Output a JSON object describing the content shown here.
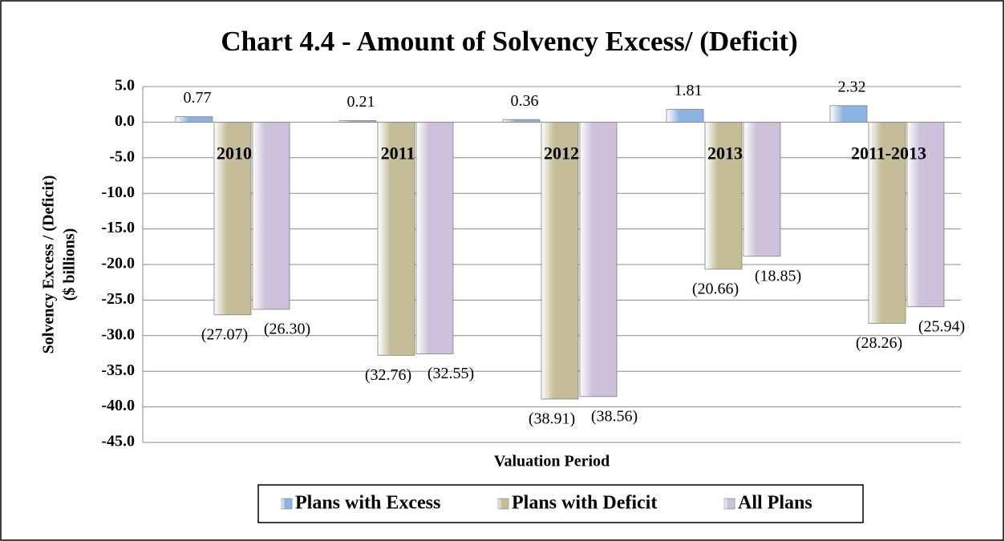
{
  "chart_data": {
    "type": "bar",
    "title": "Chart 4.4 - Amount of Solvency Excess/ (Deficit)",
    "y_label": [
      "Solvency Excess / (Deficit)",
      "($ billions)"
    ],
    "x_label": "Valuation Period",
    "categories": [
      "2010",
      "2011",
      "2012",
      "2013",
      "2011-2013"
    ],
    "series": [
      {
        "name": "Plans with Excess",
        "color": "#8db3e2",
        "values": [
          0.77,
          0.21,
          0.36,
          1.81,
          2.32
        ]
      },
      {
        "name": "Plans with Deficit",
        "color": "#c4bd97",
        "values": [
          -27.07,
          -32.76,
          -38.91,
          -20.66,
          -28.26
        ],
        "value_labels": [
          "(27.07)",
          "(32.76)",
          "(38.91)",
          "(20.66)",
          "(28.26)"
        ]
      },
      {
        "name": "All Plans",
        "color": "#ccc0da",
        "values": [
          -26.3,
          -32.55,
          -38.56,
          -18.85,
          -25.94
        ],
        "value_labels": [
          "(26.30)",
          "(32.55)",
          "(38.56)",
          "(18.85)",
          "(25.94)"
        ]
      }
    ],
    "ylim": [
      -45,
      5
    ],
    "yticks": [
      {
        "value": 5,
        "label": "5.0"
      },
      {
        "value": 0,
        "label": "0.0"
      },
      {
        "value": -5,
        "label": "-5.0"
      },
      {
        "value": -10,
        "label": "-10.0"
      },
      {
        "value": -15,
        "label": "-15.0"
      },
      {
        "value": -20,
        "label": "-20.0"
      },
      {
        "value": -25,
        "label": "-25.0"
      },
      {
        "value": -30,
        "label": "-30.0"
      },
      {
        "value": -35,
        "label": "-35.0"
      },
      {
        "value": -40,
        "label": "-40.0"
      },
      {
        "value": -45,
        "label": "-45.0"
      }
    ],
    "grid": true,
    "legend": "bottom"
  }
}
